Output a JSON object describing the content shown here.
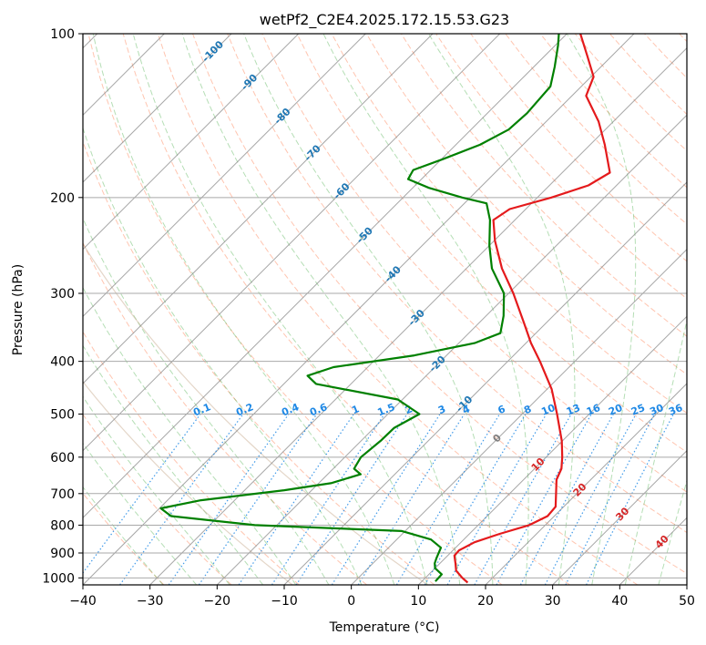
{
  "chart_data": {
    "type": "line",
    "title": "wetPf2_C2E4.2025.172.15.53.G23",
    "xlabel": "Temperature (°C)",
    "ylabel": "Pressure (hPa)",
    "xlim": [
      -40,
      50
    ],
    "ylim": [
      1030,
      100
    ],
    "y_scale": "log",
    "skew": true,
    "grid": true,
    "x_ticks": [
      -40,
      -30,
      -20,
      -10,
      0,
      10,
      20,
      30,
      40,
      50
    ],
    "y_ticks": [
      100,
      200,
      300,
      400,
      500,
      600,
      700,
      800,
      900,
      1000
    ],
    "isotherm_labels": [
      -100,
      -90,
      -80,
      -70,
      -60,
      -50,
      -40,
      -30,
      -20,
      -10,
      0,
      10,
      20,
      30,
      40
    ],
    "mixing_ratio_labels": [
      "0.1",
      "0.2",
      "0.4",
      "0.6",
      "1",
      "1.5",
      "2",
      "3",
      "4",
      "6",
      "8",
      "10",
      "13",
      "16",
      "20",
      "25",
      "30",
      "36"
    ],
    "series": [
      {
        "role": "temperature",
        "color": "#e41a1c",
        "points": [
          {
            "p": 1020,
            "t": 17.0
          },
          {
            "p": 1000,
            "t": 15.5
          },
          {
            "p": 970,
            "t": 13.5
          },
          {
            "p": 940,
            "t": 12.3
          },
          {
            "p": 910,
            "t": 11.0
          },
          {
            "p": 890,
            "t": 10.9
          },
          {
            "p": 860,
            "t": 12.0
          },
          {
            "p": 830,
            "t": 14.5
          },
          {
            "p": 800,
            "t": 17.6
          },
          {
            "p": 770,
            "t": 19.0
          },
          {
            "p": 740,
            "t": 18.8
          },
          {
            "p": 700,
            "t": 16.9
          },
          {
            "p": 660,
            "t": 14.9
          },
          {
            "p": 630,
            "t": 14.0
          },
          {
            "p": 600,
            "t": 12.4
          },
          {
            "p": 560,
            "t": 9.9
          },
          {
            "p": 500,
            "t": 5.2
          },
          {
            "p": 450,
            "t": 0.7
          },
          {
            "p": 400,
            "t": -5.2
          },
          {
            "p": 370,
            "t": -9.3
          },
          {
            "p": 340,
            "t": -13.3
          },
          {
            "p": 300,
            "t": -19.3
          },
          {
            "p": 270,
            "t": -24.7
          },
          {
            "p": 240,
            "t": -29.9
          },
          {
            "p": 220,
            "t": -33.2
          },
          {
            "p": 210,
            "t": -32.4
          },
          {
            "p": 200,
            "t": -27.9
          },
          {
            "p": 190,
            "t": -24.2
          },
          {
            "p": 180,
            "t": -22.9
          },
          {
            "p": 160,
            "t": -27.8
          },
          {
            "p": 145,
            "t": -32.2
          },
          {
            "p": 130,
            "t": -37.9
          },
          {
            "p": 120,
            "t": -39.6
          },
          {
            "p": 110,
            "t": -43.6
          },
          {
            "p": 100,
            "t": -48.0
          }
        ]
      },
      {
        "role": "dewpoint",
        "color": "#008000",
        "points": [
          {
            "p": 1015,
            "t": 12.0
          },
          {
            "p": 985,
            "t": 11.9
          },
          {
            "p": 960,
            "t": 10.0
          },
          {
            "p": 940,
            "t": 9.2
          },
          {
            "p": 920,
            "t": 8.7
          },
          {
            "p": 880,
            "t": 7.8
          },
          {
            "p": 850,
            "t": 5.1
          },
          {
            "p": 820,
            "t": -0.5
          },
          {
            "p": 800,
            "t": -23.3
          },
          {
            "p": 770,
            "t": -37.1
          },
          {
            "p": 745,
            "t": -39.8
          },
          {
            "p": 720,
            "t": -35.0
          },
          {
            "p": 690,
            "t": -24.1
          },
          {
            "p": 670,
            "t": -18.2
          },
          {
            "p": 645,
            "t": -15.1
          },
          {
            "p": 630,
            "t": -16.9
          },
          {
            "p": 600,
            "t": -17.6
          },
          {
            "p": 560,
            "t": -17.1
          },
          {
            "p": 530,
            "t": -17.0
          },
          {
            "p": 500,
            "t": -15.3
          },
          {
            "p": 470,
            "t": -20.7
          },
          {
            "p": 440,
            "t": -35.2
          },
          {
            "p": 425,
            "t": -37.7
          },
          {
            "p": 410,
            "t": -35.1
          },
          {
            "p": 390,
            "t": -24.8
          },
          {
            "p": 370,
            "t": -17.6
          },
          {
            "p": 355,
            "t": -15.3
          },
          {
            "p": 330,
            "t": -17.4
          },
          {
            "p": 300,
            "t": -20.7
          },
          {
            "p": 270,
            "t": -26.2
          },
          {
            "p": 245,
            "t": -30.0
          },
          {
            "p": 220,
            "t": -33.7
          },
          {
            "p": 205,
            "t": -36.7
          },
          {
            "p": 200,
            "t": -41.2
          },
          {
            "p": 192,
            "t": -47.6
          },
          {
            "p": 185,
            "t": -52.0
          },
          {
            "p": 178,
            "t": -52.6
          },
          {
            "p": 170,
            "t": -49.8
          },
          {
            "p": 160,
            "t": -46.4
          },
          {
            "p": 150,
            "t": -44.4
          },
          {
            "p": 140,
            "t": -44.1
          },
          {
            "p": 125,
            "t": -44.6
          },
          {
            "p": 115,
            "t": -46.9
          },
          {
            "p": 105,
            "t": -49.6
          },
          {
            "p": 100,
            "t": -51.2
          }
        ]
      }
    ]
  },
  "colors": {
    "isotherm": "#808080",
    "isotherm_label": "#1f77b4",
    "dry_adiabat": "#ff7f50",
    "moist_adiabat": "#2ca02c",
    "mixing_ratio": "#1e88e5",
    "theta_e": "#c4a484",
    "mixing_ratio_label": "#1e88e5",
    "hot_label": "#d62728",
    "zero_label": "#7f7f7f"
  }
}
